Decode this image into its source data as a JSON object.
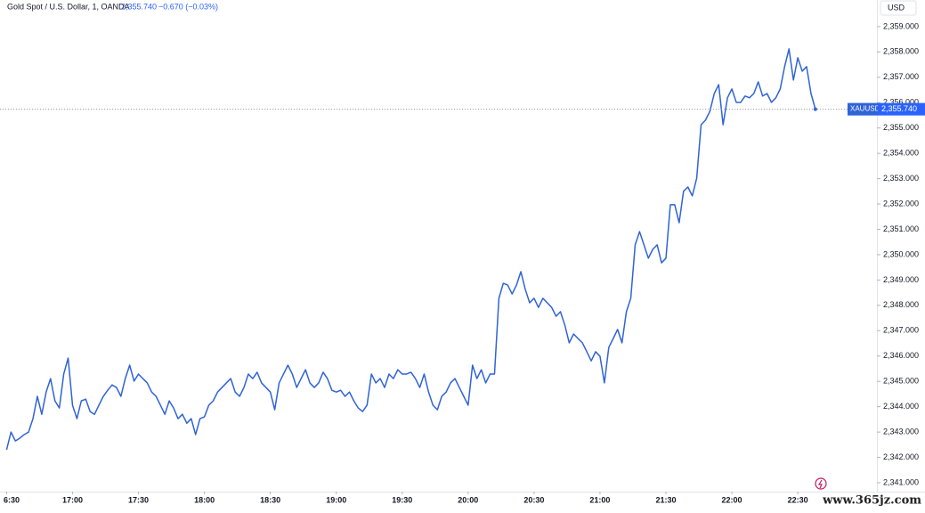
{
  "chart_data": {
    "type": "line",
    "title": "Gold Spot / U.S. Dollar, 1, OANDA",
    "price": "2,355.740",
    "change": "−0.670 (−0.03%)",
    "currency": "USD",
    "watermark": "www.365jz.com",
    "last_value_label": "2,355.740",
    "x": [
      "16:30",
      "16:32",
      "16:34",
      "16:36",
      "16:38",
      "16:40",
      "16:42",
      "16:44",
      "16:46",
      "16:48",
      "16:50",
      "16:52",
      "16:54",
      "16:56",
      "16:58",
      "17:00",
      "17:02",
      "17:04",
      "17:06",
      "17:08",
      "17:10",
      "17:12",
      "17:14",
      "17:16",
      "17:18",
      "17:20",
      "17:22",
      "17:24",
      "17:26",
      "17:28",
      "17:30",
      "17:32",
      "17:34",
      "17:36",
      "17:38",
      "17:40",
      "17:42",
      "17:44",
      "17:46",
      "17:48",
      "17:50",
      "17:52",
      "17:54",
      "17:56",
      "17:58",
      "18:00",
      "18:02",
      "18:04",
      "18:06",
      "18:08",
      "18:10",
      "18:12",
      "18:14",
      "18:16",
      "18:18",
      "18:20",
      "18:22",
      "18:24",
      "18:26",
      "18:28",
      "18:30",
      "18:32",
      "18:34",
      "18:36",
      "18:38",
      "18:40",
      "18:42",
      "18:44",
      "18:46",
      "18:48",
      "18:50",
      "18:52",
      "18:54",
      "18:56",
      "18:58",
      "19:00",
      "19:02",
      "19:04",
      "19:06",
      "19:08",
      "19:10",
      "19:12",
      "19:14",
      "19:16",
      "19:18",
      "19:20",
      "19:22",
      "19:24",
      "19:26",
      "19:28",
      "19:30",
      "19:32",
      "19:34",
      "19:36",
      "19:38",
      "19:40",
      "19:42",
      "19:44",
      "19:46",
      "19:48",
      "19:50",
      "19:52",
      "19:54",
      "19:56",
      "19:58",
      "20:00",
      "20:02",
      "20:04",
      "20:06",
      "20:08",
      "20:10",
      "20:12",
      "20:14",
      "20:16",
      "20:18",
      "20:20",
      "20:22",
      "20:24",
      "20:26",
      "20:28",
      "20:30",
      "20:32",
      "20:34",
      "20:36",
      "20:38",
      "20:40",
      "20:42",
      "20:44",
      "20:46",
      "20:48",
      "20:50",
      "20:52",
      "20:54",
      "20:56",
      "20:58",
      "21:00",
      "21:02",
      "21:04",
      "21:06",
      "21:08",
      "21:10",
      "21:12",
      "21:14",
      "21:16",
      "21:18",
      "21:20",
      "21:22",
      "21:24",
      "21:26",
      "21:28",
      "21:30",
      "21:32",
      "21:34",
      "21:36",
      "21:38",
      "21:40",
      "21:42",
      "21:44",
      "21:46",
      "21:48",
      "21:50",
      "21:52",
      "21:54",
      "21:56",
      "21:58",
      "22:00",
      "22:02",
      "22:04",
      "22:06",
      "22:08",
      "22:10",
      "22:12",
      "22:14",
      "22:16",
      "22:18",
      "22:20",
      "22:22",
      "22:24",
      "22:26",
      "22:28",
      "22:30",
      "22:32",
      "22:34",
      "22:36",
      "22:38"
    ],
    "series": [
      {
        "name": "XAUUSD",
        "color": "#2f63d8",
        "values": [
          2342.3,
          2343.0,
          2342.65,
          2342.76,
          2342.9,
          2343.0,
          2343.53,
          2344.41,
          2343.7,
          2344.58,
          2345.11,
          2344.23,
          2343.95,
          2345.29,
          2345.92,
          2344.06,
          2343.53,
          2344.23,
          2344.3,
          2343.81,
          2343.7,
          2344.06,
          2344.41,
          2344.65,
          2344.86,
          2344.76,
          2344.41,
          2345.11,
          2345.64,
          2345.01,
          2345.29,
          2345.11,
          2344.94,
          2344.58,
          2344.41,
          2344.06,
          2343.7,
          2344.23,
          2343.95,
          2343.53,
          2343.7,
          2343.35,
          2343.53,
          2342.9,
          2343.53,
          2343.6,
          2344.06,
          2344.23,
          2344.58,
          2344.76,
          2344.94,
          2345.11,
          2344.58,
          2344.41,
          2344.76,
          2345.29,
          2345.11,
          2345.36,
          2344.94,
          2344.76,
          2344.58,
          2343.88,
          2344.94,
          2345.29,
          2345.64,
          2345.29,
          2344.76,
          2345.11,
          2345.46,
          2344.94,
          2344.76,
          2344.94,
          2345.36,
          2345.11,
          2344.65,
          2344.58,
          2344.65,
          2344.41,
          2344.58,
          2344.23,
          2343.95,
          2343.81,
          2344.06,
          2345.29,
          2344.94,
          2345.11,
          2344.76,
          2345.29,
          2345.11,
          2345.46,
          2345.29,
          2345.29,
          2345.36,
          2345.11,
          2344.76,
          2345.29,
          2344.58,
          2344.06,
          2343.88,
          2344.41,
          2344.58,
          2344.94,
          2345.11,
          2344.76,
          2344.41,
          2344.06,
          2345.64,
          2345.11,
          2345.46,
          2344.94,
          2345.29,
          2345.29,
          2348.28,
          2348.87,
          2348.8,
          2348.45,
          2348.8,
          2349.33,
          2348.63,
          2348.1,
          2348.28,
          2347.92,
          2348.28,
          2348.1,
          2347.92,
          2347.57,
          2347.75,
          2347.22,
          2346.52,
          2346.87,
          2346.69,
          2346.52,
          2346.17,
          2345.81,
          2346.17,
          2345.99,
          2344.94,
          2346.34,
          2346.69,
          2347.05,
          2346.52,
          2347.75,
          2348.28,
          2350.39,
          2350.91,
          2350.39,
          2349.86,
          2350.21,
          2350.39,
          2349.68,
          2349.86,
          2351.97,
          2351.97,
          2351.26,
          2352.5,
          2352.67,
          2352.32,
          2353.02,
          2355.13,
          2355.31,
          2355.66,
          2356.36,
          2356.71,
          2355.13,
          2356.19,
          2356.54,
          2356.01,
          2356.01,
          2356.26,
          2356.19,
          2356.36,
          2356.82,
          2356.26,
          2356.36,
          2356.01,
          2356.19,
          2356.54,
          2357.42,
          2358.12,
          2356.89,
          2357.77,
          2357.24,
          2357.42,
          2356.36,
          2355.74
        ]
      }
    ],
    "xlim": [
      "16:27",
      "23:06"
    ],
    "xticks": [
      {
        "value": "16:30",
        "label": "6:30"
      },
      "17:00",
      "17:30",
      "18:00",
      "18:30",
      "19:00",
      "19:30",
      "20:00",
      "20:30",
      "21:00",
      "21:30",
      "22:00",
      "22:30"
    ],
    "ylim": [
      2340.72,
      2360.05
    ],
    "yticks": [
      {
        "value": 2341,
        "label": "2,341.000"
      },
      {
        "value": 2342,
        "label": "2,342.000"
      },
      {
        "value": 2343,
        "label": "2,343.000"
      },
      {
        "value": 2344,
        "label": "2,344.000"
      },
      {
        "value": 2345,
        "label": "2,345.000"
      },
      {
        "value": 2346,
        "label": "2,346.000"
      },
      {
        "value": 2347,
        "label": "2,347.000"
      },
      {
        "value": 2348,
        "label": "2,348.000"
      },
      {
        "value": 2349,
        "label": "2,349.000"
      },
      {
        "value": 2350,
        "label": "2,350.000"
      },
      {
        "value": 2351,
        "label": "2,351.000"
      },
      {
        "value": 2352,
        "label": "2,352.000"
      },
      {
        "value": 2353,
        "label": "2,353.000"
      },
      {
        "value": 2354,
        "label": "2,354.000"
      },
      {
        "value": 2355,
        "label": "2,355.000"
      },
      {
        "value": 2356,
        "label": "2,356.000"
      },
      {
        "value": 2357,
        "label": "2,357.000"
      },
      {
        "value": 2358,
        "label": "2,358.000"
      },
      {
        "value": 2359,
        "label": "2,359.000"
      }
    ],
    "grid": false
  }
}
